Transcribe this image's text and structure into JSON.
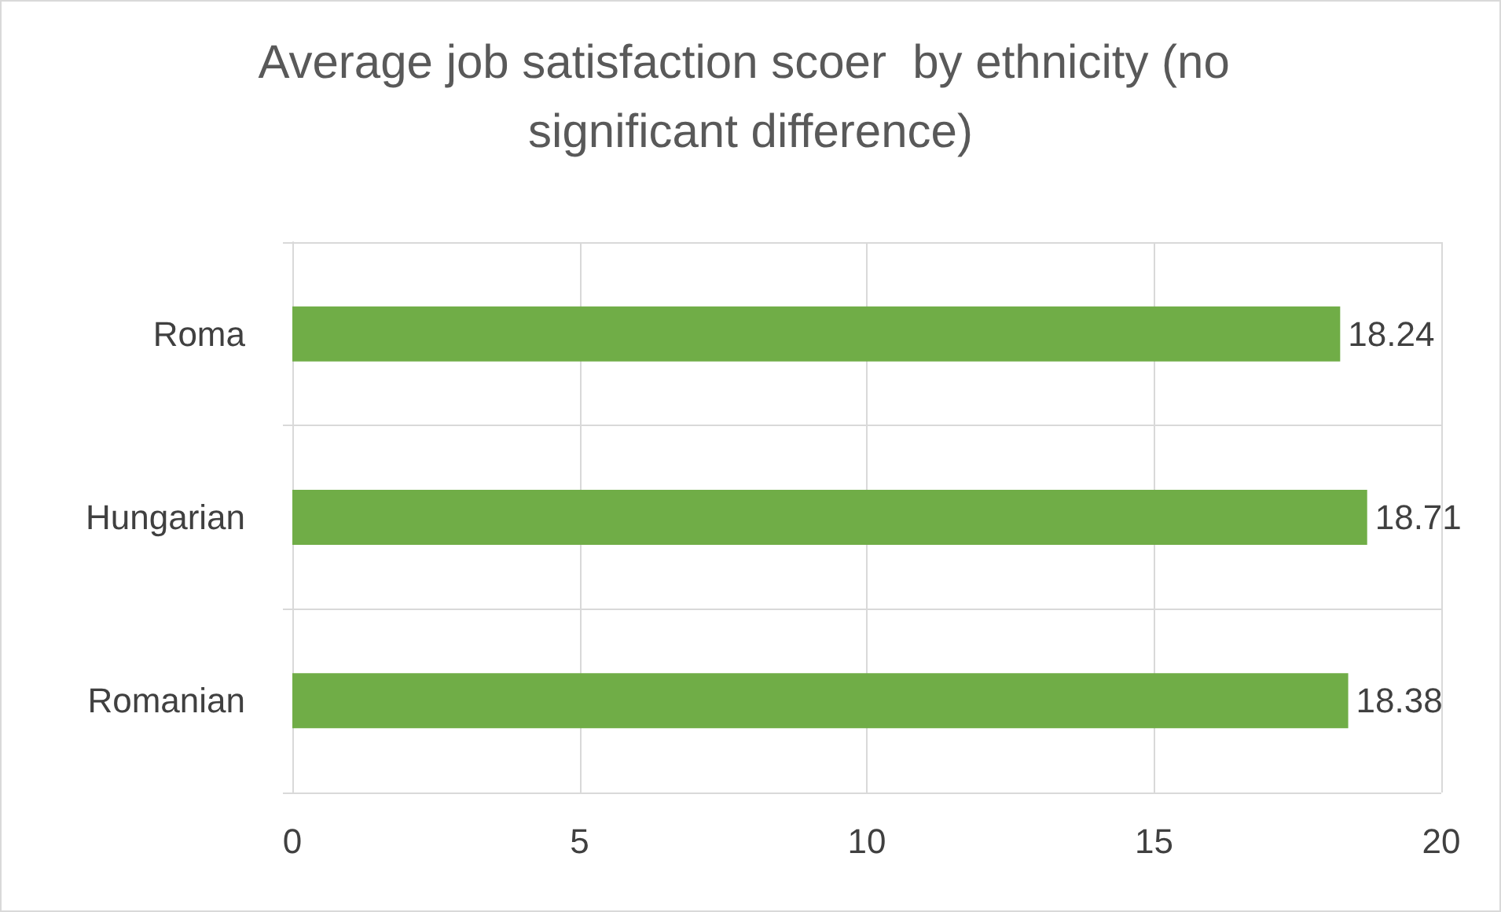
{
  "chart_data": {
    "type": "bar",
    "orientation": "horizontal",
    "title": "Average job satisfaction scoer  by ethnicity (no significant difference)",
    "categories": [
      "Roma",
      "Hungarian",
      "Romanian"
    ],
    "values": [
      18.24,
      18.71,
      18.38
    ],
    "color": "#70ad47",
    "xlim": [
      0,
      20
    ],
    "xticks": [
      0,
      5,
      10,
      15,
      20
    ],
    "grid": true,
    "data_labels": true
  }
}
